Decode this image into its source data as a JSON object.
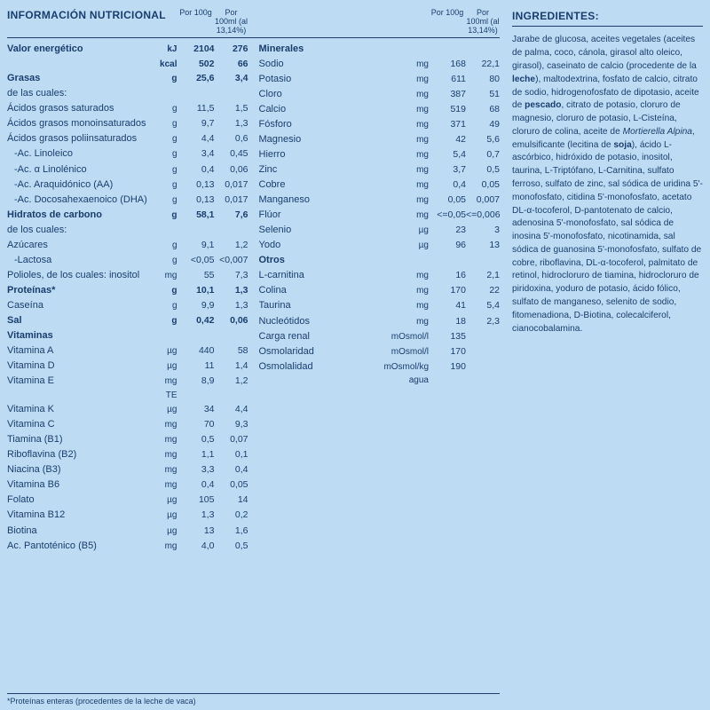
{
  "title": "INFORMACIÓN NUTRICIONAL",
  "col_headers": {
    "per100g": "Por 100g",
    "per100ml": "Por 100ml (al 13,14%)"
  },
  "footnote": "*Proteínas enteras (procedentes de la leche de vaca)",
  "left_rows": [
    {
      "name": "Valor energético",
      "unit": "kJ",
      "v1": "2104",
      "v2": "276",
      "bold": true
    },
    {
      "name": "",
      "unit": "kcal",
      "v1": "502",
      "v2": "66",
      "bold": true
    },
    {
      "name": "Grasas",
      "unit": "g",
      "v1": "25,6",
      "v2": "3,4",
      "bold": true
    },
    {
      "name": "de las cuales:",
      "unit": "",
      "v1": "",
      "v2": ""
    },
    {
      "name": "Ácidos grasos saturados",
      "unit": "g",
      "v1": "11,5",
      "v2": "1,5"
    },
    {
      "name": "Ácidos grasos monoinsaturados",
      "unit": "g",
      "v1": "9,7",
      "v2": "1,3"
    },
    {
      "name": "Ácidos grasos poliinsaturados",
      "unit": "g",
      "v1": "4,4",
      "v2": "0,6"
    },
    {
      "name": "-Ac. Linoleico",
      "unit": "g",
      "v1": "3,4",
      "v2": "0,45",
      "indent": 1
    },
    {
      "name": "-Ac. α Linolénico",
      "unit": "g",
      "v1": "0,4",
      "v2": "0,06",
      "indent": 1
    },
    {
      "name": "-Ac. Araquidónico (AA)",
      "unit": "g",
      "v1": "0,13",
      "v2": "0,017",
      "indent": 1
    },
    {
      "name": "-Ac. Docosahexaenoico (DHA)",
      "unit": "g",
      "v1": "0,13",
      "v2": "0,017",
      "indent": 1
    },
    {
      "name": "Hidratos de carbono",
      "unit": "g",
      "v1": "58,1",
      "v2": "7,6",
      "bold": true
    },
    {
      "name": "de los cuales:",
      "unit": "",
      "v1": "",
      "v2": ""
    },
    {
      "name": "Azúcares",
      "unit": "g",
      "v1": "9,1",
      "v2": "1,2"
    },
    {
      "name": "-Lactosa",
      "unit": "g",
      "v1": "<0,05",
      "v2": "<0,007",
      "indent": 1
    },
    {
      "name": "Polioles, de los cuales: inositol",
      "unit": "mg",
      "v1": "55",
      "v2": "7,3"
    },
    {
      "name": "Proteínas*",
      "unit": "g",
      "v1": "10,1",
      "v2": "1,3",
      "bold": true
    },
    {
      "name": "Caseína",
      "unit": "g",
      "v1": "9,9",
      "v2": "1,3"
    },
    {
      "name": "Sal",
      "unit": "g",
      "v1": "0,42",
      "v2": "0,06",
      "bold": true
    },
    {
      "name": "Vitaminas",
      "unit": "",
      "v1": "",
      "v2": "",
      "bold": true
    },
    {
      "name": "Vitamina A",
      "unit": "µg",
      "v1": "440",
      "v2": "58"
    },
    {
      "name": "Vitamina D",
      "unit": "µg",
      "v1": "11",
      "v2": "1,4"
    },
    {
      "name": "Vitamina E",
      "unit": "mg TE",
      "v1": "8,9",
      "v2": "1,2"
    },
    {
      "name": "Vitamina K",
      "unit": "µg",
      "v1": "34",
      "v2": "4,4"
    },
    {
      "name": "Vitamina C",
      "unit": "mg",
      "v1": "70",
      "v2": "9,3"
    },
    {
      "name": "Tiamina (B1)",
      "unit": "mg",
      "v1": "0,5",
      "v2": "0,07"
    },
    {
      "name": "Riboflavina (B2)",
      "unit": "mg",
      "v1": "1,1",
      "v2": "0,1"
    },
    {
      "name": "Niacina (B3)",
      "unit": "mg",
      "v1": "3,3",
      "v2": "0,4"
    },
    {
      "name": "Vitamina B6",
      "unit": "mg",
      "v1": "0,4",
      "v2": "0,05"
    },
    {
      "name": "Folato",
      "unit": "µg",
      "v1": "105",
      "v2": "14"
    },
    {
      "name": "Vitamina B12",
      "unit": "µg",
      "v1": "1,3",
      "v2": "0,2"
    },
    {
      "name": "Biotina",
      "unit": "µg",
      "v1": "13",
      "v2": "1,6"
    },
    {
      "name": "Ac. Pantoténico (B5)",
      "unit": "mg",
      "v1": "4,0",
      "v2": "0,5"
    }
  ],
  "right_rows": [
    {
      "name": "Minerales",
      "unit": "",
      "v1": "",
      "v2": "",
      "bold": true
    },
    {
      "name": "Sodio",
      "unit": "mg",
      "v1": "168",
      "v2": "22,1"
    },
    {
      "name": "Potasio",
      "unit": "mg",
      "v1": "611",
      "v2": "80"
    },
    {
      "name": "Cloro",
      "unit": "mg",
      "v1": "387",
      "v2": "51"
    },
    {
      "name": "Calcio",
      "unit": "mg",
      "v1": "519",
      "v2": "68"
    },
    {
      "name": "Fósforo",
      "unit": "mg",
      "v1": "371",
      "v2": "49"
    },
    {
      "name": "Magnesio",
      "unit": "mg",
      "v1": "42",
      "v2": "5,6"
    },
    {
      "name": "Hierro",
      "unit": "mg",
      "v1": "5,4",
      "v2": "0,7"
    },
    {
      "name": "Zinc",
      "unit": "mg",
      "v1": "3,7",
      "v2": "0,5"
    },
    {
      "name": "Cobre",
      "unit": "mg",
      "v1": "0,4",
      "v2": "0,05"
    },
    {
      "name": "Manganeso",
      "unit": "mg",
      "v1": "0,05",
      "v2": "0,007"
    },
    {
      "name": "Flúor",
      "unit": "mg",
      "v1": "<=0,05",
      "v2": "<=0,006"
    },
    {
      "name": "Selenio",
      "unit": "µg",
      "v1": "23",
      "v2": "3"
    },
    {
      "name": "Yodo",
      "unit": "µg",
      "v1": "96",
      "v2": "13"
    },
    {
      "name": "Otros",
      "unit": "",
      "v1": "",
      "v2": "",
      "bold": true
    },
    {
      "name": "L-carnitina",
      "unit": "mg",
      "v1": "16",
      "v2": "2,1"
    },
    {
      "name": "Colina",
      "unit": "mg",
      "v1": "170",
      "v2": "22"
    },
    {
      "name": "Taurina",
      "unit": "mg",
      "v1": "41",
      "v2": "5,4"
    },
    {
      "name": "Nucleótidos",
      "unit": "mg",
      "v1": "18",
      "v2": "2,3"
    },
    {
      "name": "",
      "unit": "",
      "v1": "",
      "v2": ""
    },
    {
      "name": "Carga renal",
      "unit": "mOsmol/l",
      "v1": "135",
      "v2": "",
      "wideunit": true
    },
    {
      "name": "Osmolaridad",
      "unit": "mOsmol/l",
      "v1": "170",
      "v2": "",
      "wideunit": true
    },
    {
      "name": "Osmolalidad",
      "unit": "mOsmol/kg agua",
      "v1": "190",
      "v2": "",
      "wideunit": true
    }
  ],
  "ingredients": {
    "title": "INGREDIENTES:",
    "body_html": "Jarabe de glucosa, aceites vegetales (aceites de palma, coco, cánola, girasol alto oleico, girasol), caseinato de calcio (procedente de la <b>leche</b>), maltodextrina, fosfato de calcio, citrato de sodio, hidrogenofosfato de dipotasio, aceite de <b>pescado</b>, citrato de potasio, cloruro de magnesio, cloruro de potasio, L-Cisteína, cloruro de colina, aceite de <i>Mortierella Alpina</i>, emulsificante (lecitina de <b>soja</b>), ácido L-ascórbico, hidróxido de potasio, inositol, taurina, L-Triptófano, L-Carnitina, sulfato ferroso, sulfato de zinc, sal sódica de uridina 5'-monofosfato, citidina 5'-monofosfato, acetato DL-α-tocoferol, D-pantotenato de calcio, adenosina 5'-monofosfato, sal sódica de inosina 5'-monofosfato, nicotinamida, sal sódica de guanosina 5'-monofosfato, sulfato de cobre, riboflavina,  DL-α-tocoferol, palmitato de retinol, hidrocloruro de tiamina, hidrocloruro de piridoxina, yoduro de potasio, ácido fólico, sulfato de manganeso, selenito de sodio, fitomenadiona, D-Biotina, colecalciferol, cianocobalamina."
  },
  "colors": {
    "background": "#bddcf3",
    "text": "#1a3d6d",
    "rule": "#1a3d6d"
  }
}
